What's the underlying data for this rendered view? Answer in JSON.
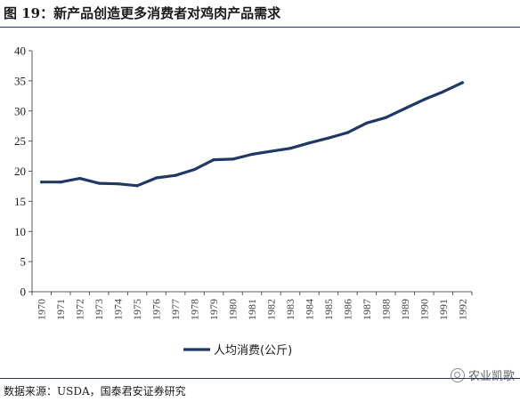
{
  "figure": {
    "title": "图 19：新产品创造更多消费者对鸡肉产品需求",
    "source": "数据来源：USDA，国泰君安证券研究",
    "watermark": "农业凯歌",
    "watermark_icon": "wechat-icon"
  },
  "colors": {
    "line": "#1f3864",
    "axis": "#595959",
    "text": "#1a1a1a",
    "rule": "#1f3864"
  },
  "chart_data": {
    "type": "line",
    "title": "",
    "xlabel": "",
    "ylabel": "",
    "ylim": [
      0,
      40
    ],
    "yticks": [
      0,
      5,
      10,
      15,
      20,
      25,
      30,
      35,
      40
    ],
    "grid": false,
    "legend_position": "bottom",
    "categories": [
      "1970",
      "1971",
      "1972",
      "1973",
      "1974",
      "1975",
      "1976",
      "1977",
      "1978",
      "1979",
      "1980",
      "1981",
      "1982",
      "1983",
      "1984",
      "1985",
      "1986",
      "1987",
      "1988",
      "1989",
      "1990",
      "1991",
      "1992"
    ],
    "series": [
      {
        "name": "人均消费(公斤)",
        "values": [
          18.2,
          18.2,
          18.8,
          18.0,
          17.9,
          17.6,
          18.9,
          19.3,
          20.3,
          21.9,
          22.0,
          22.8,
          23.3,
          23.8,
          24.7,
          25.5,
          26.4,
          28.0,
          28.9,
          30.4,
          31.9,
          33.2,
          34.7
        ]
      }
    ]
  }
}
